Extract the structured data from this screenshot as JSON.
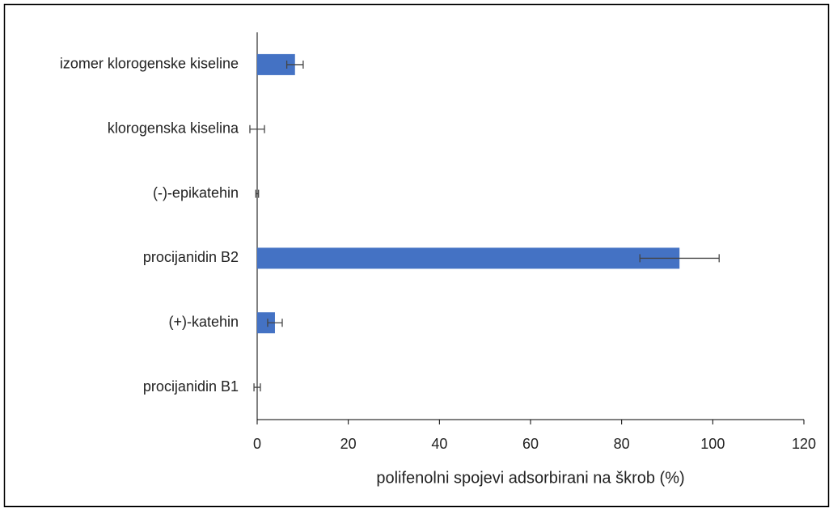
{
  "chart_data": {
    "type": "hbar",
    "categories": [
      "izomer klorogenske kiseline",
      "klorogenska kiselina",
      "(-)-epikatehin",
      "procijanidin B2",
      "(+)-katehin",
      "procijanidin B1"
    ],
    "values": [
      8.3,
      0,
      0,
      92.7,
      3.9,
      0
    ],
    "errors": [
      1.8,
      1.6,
      0.3,
      8.7,
      1.6,
      0.7
    ],
    "color": "#4472c4",
    "xlabel": "polifenolni spojevi adsorbirani na škrob (%)",
    "xlim": [
      0,
      120
    ],
    "xticks": [
      0,
      20,
      40,
      60,
      80,
      100,
      120
    ],
    "grid": false
  }
}
